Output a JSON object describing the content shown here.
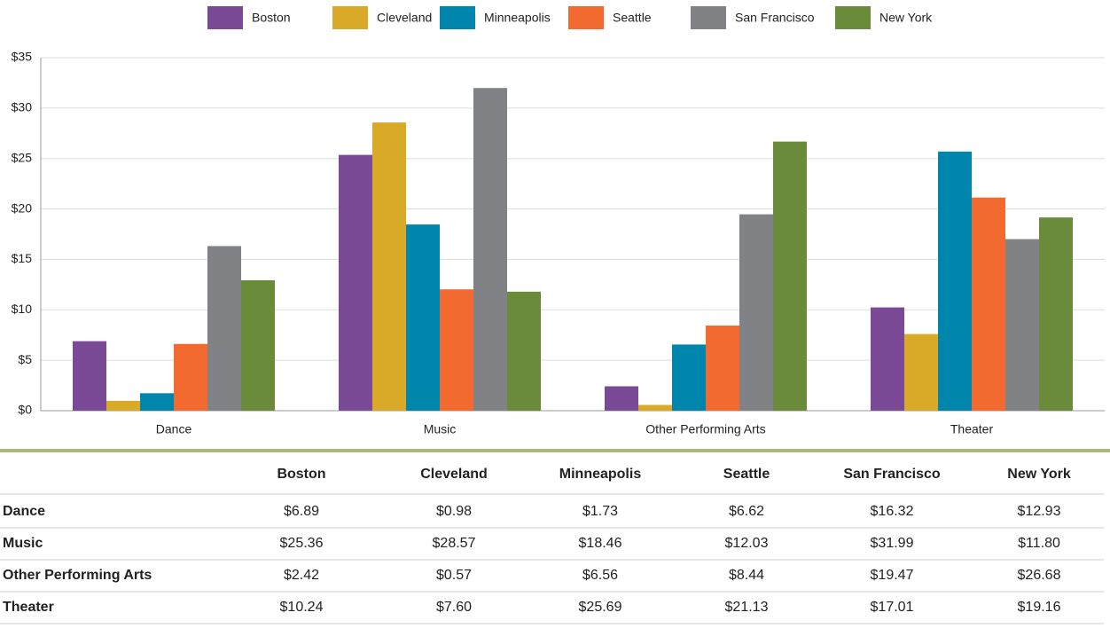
{
  "chart_data": {
    "type": "bar",
    "categories": [
      "Dance",
      "Music",
      "Other Performing Arts",
      "Theater"
    ],
    "series": [
      {
        "name": "Boston",
        "color": "#7b4a96",
        "values": [
          6.89,
          25.36,
          2.42,
          10.24
        ],
        "value_labels": [
          "$6.89",
          "$25.36",
          "$2.42",
          "$10.24"
        ]
      },
      {
        "name": "Cleveland",
        "color": "#d9aa27",
        "values": [
          0.98,
          28.57,
          0.57,
          7.6
        ],
        "value_labels": [
          "$0.98",
          "$28.57",
          "$0.57",
          "$7.60"
        ]
      },
      {
        "name": "Minneapolis",
        "color": "#0085ad",
        "values": [
          1.73,
          18.46,
          6.56,
          25.69
        ],
        "value_labels": [
          "$1.73",
          "$18.46",
          "$6.56",
          "$25.69"
        ]
      },
      {
        "name": "Seattle",
        "color": "#f26a30",
        "values": [
          6.62,
          12.03,
          8.44,
          21.13
        ],
        "value_labels": [
          "$6.62",
          "$12.03",
          "$8.44",
          "$21.13"
        ]
      },
      {
        "name": "San Francisco",
        "color": "#808285",
        "values": [
          16.32,
          31.99,
          19.47,
          17.01
        ],
        "value_labels": [
          "$16.32",
          "$31.99",
          "$19.47",
          "$17.01"
        ]
      },
      {
        "name": "New York",
        "color": "#6a8c3a",
        "values": [
          12.93,
          11.8,
          26.68,
          19.16
        ],
        "value_labels": [
          "$12.93",
          "$11.80",
          "$26.68",
          "$19.16"
        ]
      }
    ],
    "ylim": [
      0,
      35
    ],
    "yticks": [
      {
        "value": 0,
        "label": "$0"
      },
      {
        "value": 5,
        "label": "$5"
      },
      {
        "value": 10,
        "label": "$10"
      },
      {
        "value": 15,
        "label": "$15"
      },
      {
        "value": 20,
        "label": "$20"
      },
      {
        "value": 25,
        "label": "$25"
      },
      {
        "value": 30,
        "label": "$30"
      },
      {
        "value": 35,
        "label": "$35"
      }
    ],
    "grid": true,
    "legend": "top"
  }
}
